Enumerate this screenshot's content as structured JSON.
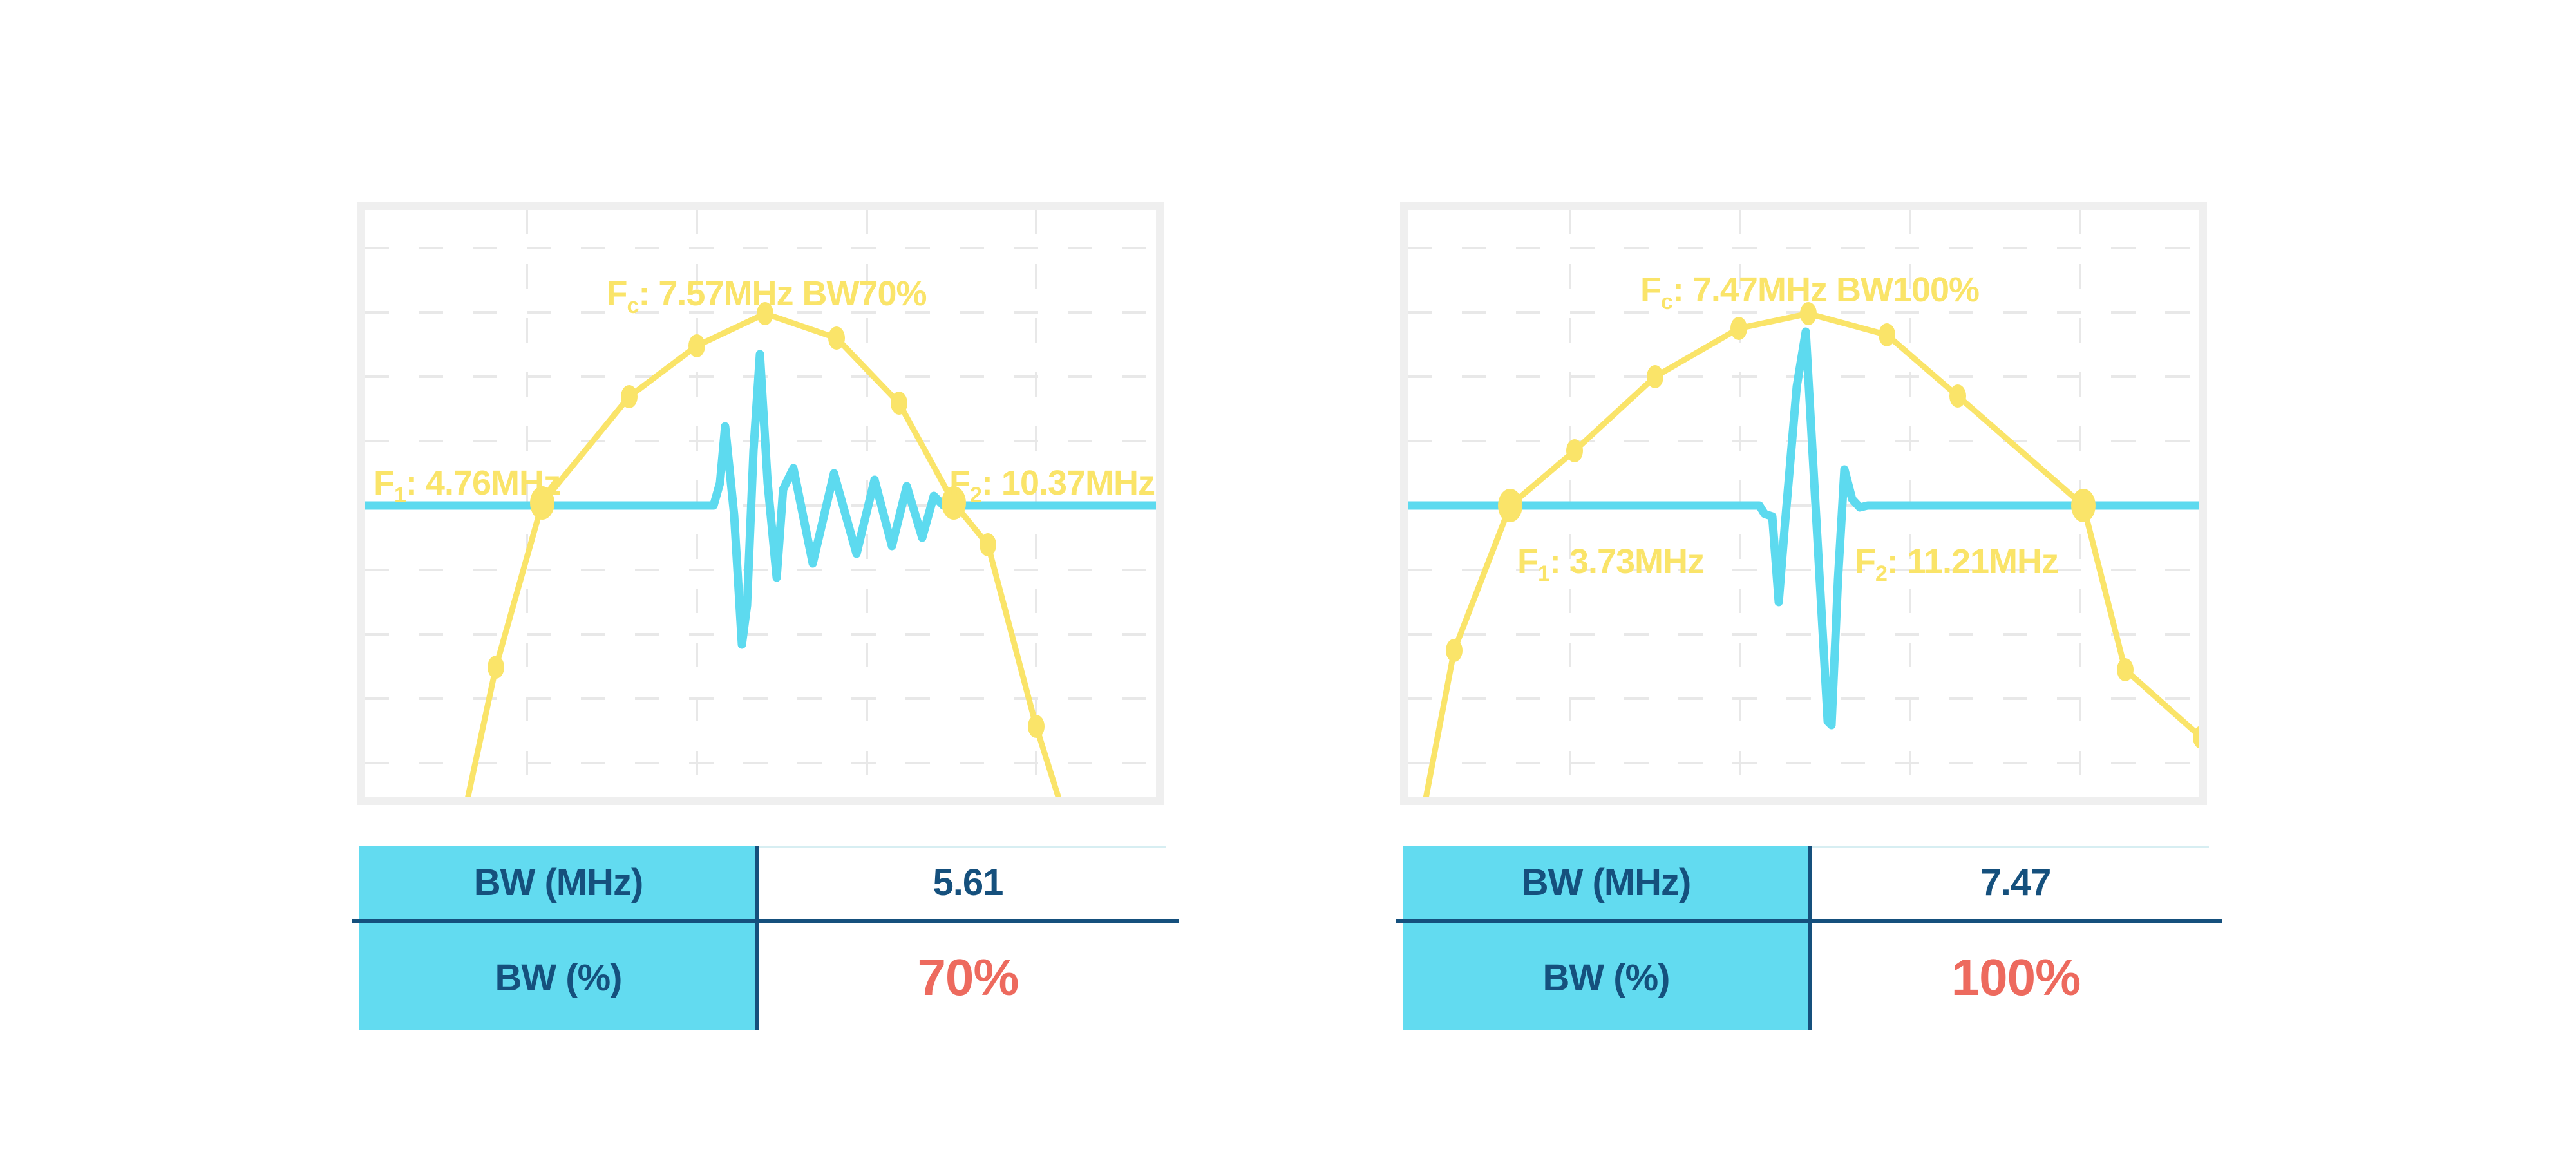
{
  "colors": {
    "yellow": "#FAE469",
    "cyan": "#5DDAEF",
    "table_cyan": "#62DBF0",
    "navy": "#15507D",
    "red": "#ED6A5E",
    "plot_border": "#EFEFEF",
    "grid": "#E8E8E8",
    "table_topline": "#D7EEF2"
  },
  "chart_data": [
    {
      "type": "line",
      "title": "Fc: 7.57MHz BW70%",
      "xlabel": "",
      "ylabel": "",
      "axes_visible": false,
      "grid": {
        "vx": [
          252,
          516,
          780,
          1043
        ],
        "hy": [
          59,
          159,
          259,
          359,
          459,
          559,
          659,
          759,
          859
        ]
      },
      "key_values": {
        "f1_mhz": 4.76,
        "fc_mhz": 7.57,
        "f2_mhz": 10.37,
        "bw_mhz": 5.61,
        "bw_percent": 70
      },
      "title_label": {
        "pre": "F",
        "sub": "c",
        "rest": ": 7.57MHz BW70%",
        "cx": 624,
        "baseline": 148,
        "anchor": "middle"
      },
      "f1_label": {
        "pre": "F",
        "sub": "1",
        "rest": ": 4.76MHz",
        "x": 14,
        "baseline": 442,
        "anchor": "start"
      },
      "f2_label": {
        "pre": "F",
        "sub": "2",
        "rest": ": 10.37MHz",
        "x": 908,
        "baseline": 442,
        "anchor": "start"
      },
      "series": [
        {
          "name": "pulse-echo waveform",
          "role": "pulse",
          "color": "#5DDAEF",
          "points": [
            [
              0,
              459
            ],
            [
              542,
              459
            ],
            [
              552,
              424
            ],
            [
              560,
              336
            ],
            [
              568,
              414
            ],
            [
              574,
              474
            ],
            [
              586,
              675
            ],
            [
              594,
              614
            ],
            [
              604,
              374
            ],
            [
              614,
              224
            ],
            [
              626,
              424
            ],
            [
              640,
              571
            ],
            [
              650,
              434
            ],
            [
              666,
              401
            ],
            [
              696,
              549
            ],
            [
              729,
              409
            ],
            [
              764,
              534
            ],
            [
              792,
              419
            ],
            [
              819,
              522
            ],
            [
              842,
              429
            ],
            [
              866,
              509
            ],
            [
              884,
              444
            ],
            [
              899,
              459
            ],
            [
              1229,
              459
            ]
          ]
        },
        {
          "name": "frequency spectrum",
          "role": "spectrum",
          "color": "#FAE469",
          "points": [
            [
              158,
              924
            ],
            [
              204,
              710
            ],
            [
              276,
              455
            ],
            [
              411,
              290
            ],
            [
              516,
              211
            ],
            [
              622,
              161
            ],
            [
              733,
              199
            ],
            [
              830,
              300
            ],
            [
              915,
              455
            ],
            [
              968,
              520
            ],
            [
              1043,
              802
            ],
            [
              1085,
              936
            ]
          ]
        }
      ],
      "markers": [
        [
          204,
          710
        ],
        [
          411,
          290
        ],
        [
          516,
          211
        ],
        [
          622,
          161
        ],
        [
          733,
          199
        ],
        [
          830,
          300
        ],
        [
          968,
          520
        ],
        [
          1043,
          802
        ]
      ],
      "markers_big": [
        [
          276,
          455
        ],
        [
          915,
          455
        ]
      ]
    },
    {
      "type": "line",
      "title": "Fc: 7.47MHz BW100%",
      "xlabel": "",
      "ylabel": "",
      "axes_visible": false,
      "grid": {
        "vx": [
          252,
          516,
          780,
          1044
        ],
        "hy": [
          59,
          159,
          259,
          359,
          459,
          559,
          659,
          759,
          859
        ]
      },
      "key_values": {
        "f1_mhz": 3.73,
        "fc_mhz": 7.47,
        "f2_mhz": 11.21,
        "bw_mhz": 7.47,
        "bw_percent": 100
      },
      "title_label": {
        "pre": "F",
        "sub": "c",
        "rest": ": 7.47MHz BW100%",
        "cx": 624,
        "baseline": 142,
        "anchor": "middle"
      },
      "f1_label": {
        "pre": "F",
        "sub": "1",
        "rest": ": 3.73MHz",
        "x": 170,
        "baseline": 564,
        "anchor": "start"
      },
      "f2_label": {
        "pre": "F",
        "sub": "2",
        "rest": ": 11.21MHz",
        "x": 694,
        "baseline": 564,
        "anchor": "start"
      },
      "series": [
        {
          "name": "pulse-echo waveform",
          "role": "pulse",
          "color": "#5DDAEF",
          "points": [
            [
              0,
              459
            ],
            [
              546,
              459
            ],
            [
              554,
              472
            ],
            [
              566,
              476
            ],
            [
              576,
              609
            ],
            [
              586,
              484
            ],
            [
              604,
              274
            ],
            [
              618,
              189
            ],
            [
              634,
              474
            ],
            [
              652,
              794
            ],
            [
              658,
              800
            ],
            [
              668,
              574
            ],
            [
              678,
              403
            ],
            [
              690,
              449
            ],
            [
              702,
              462
            ],
            [
              714,
              459
            ],
            [
              1229,
              459
            ]
          ]
        },
        {
          "name": "frequency spectrum",
          "role": "spectrum",
          "color": "#FAE469",
          "points": [
            [
              26,
              924
            ],
            [
              72,
              684
            ],
            [
              159,
              459
            ],
            [
              259,
              374
            ],
            [
              384,
              259
            ],
            [
              514,
              184
            ],
            [
              622,
              161
            ],
            [
              744,
              194
            ],
            [
              854,
              289
            ],
            [
              1049,
              459
            ],
            [
              1114,
              714
            ],
            [
              1232,
              819
            ],
            [
              1258,
              843
            ]
          ]
        }
      ],
      "markers": [
        [
          72,
          684
        ],
        [
          259,
          374
        ],
        [
          384,
          259
        ],
        [
          514,
          184
        ],
        [
          622,
          161
        ],
        [
          744,
          194
        ],
        [
          854,
          289
        ],
        [
          1114,
          714
        ],
        [
          1232,
          819
        ]
      ],
      "markers_big": [
        [
          159,
          459
        ],
        [
          1049,
          459
        ]
      ]
    }
  ],
  "tables": [
    {
      "rows": [
        {
          "label": "BW (MHz)",
          "value": "5.61"
        },
        {
          "label": "BW (%)",
          "value": "70%"
        }
      ]
    },
    {
      "rows": [
        {
          "label": "BW (MHz)",
          "value": "7.47"
        },
        {
          "label": "BW (%)",
          "value": "100%"
        }
      ]
    }
  ]
}
